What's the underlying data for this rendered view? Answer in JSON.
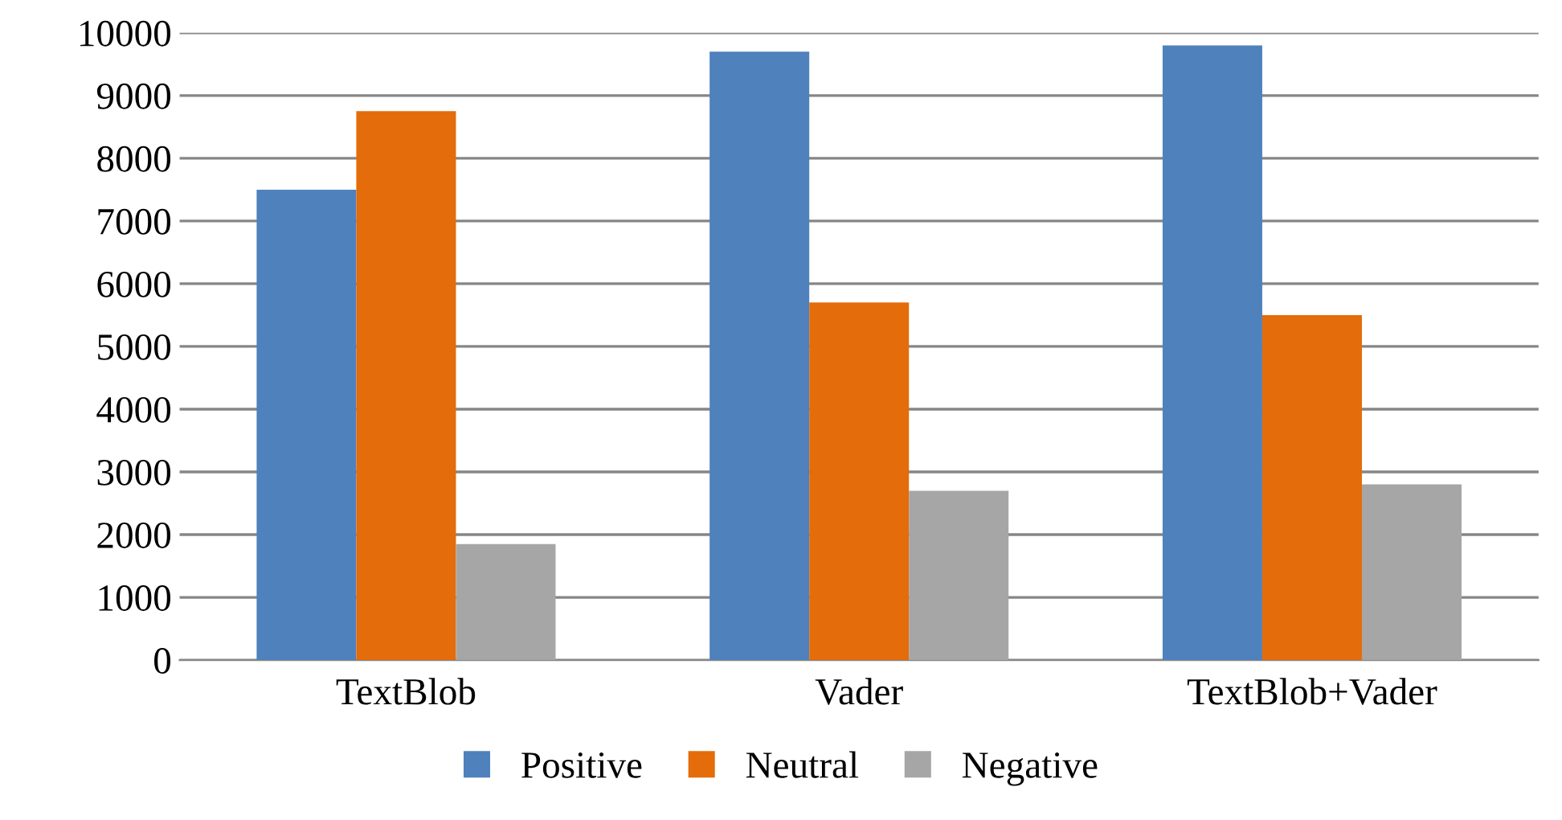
{
  "chart_data": {
    "type": "bar",
    "categories": [
      "TextBlob",
      "Vader",
      "TextBlob+Vader"
    ],
    "series": [
      {
        "name": "Positive",
        "color": "#4f81bd",
        "values": [
          7500,
          9700,
          9800
        ]
      },
      {
        "name": "Neutral",
        "color": "#e46c0a",
        "values": [
          8750,
          5700,
          5500
        ]
      },
      {
        "name": "Negative",
        "color": "#a6a6a6",
        "values": [
          1850,
          2700,
          2800
        ]
      }
    ],
    "ylim": [
      0,
      10000
    ],
    "yticks": [
      0,
      1000,
      2000,
      3000,
      4000,
      5000,
      6000,
      7000,
      8000,
      9000,
      10000
    ],
    "grid": "y",
    "legend": "bottom"
  }
}
